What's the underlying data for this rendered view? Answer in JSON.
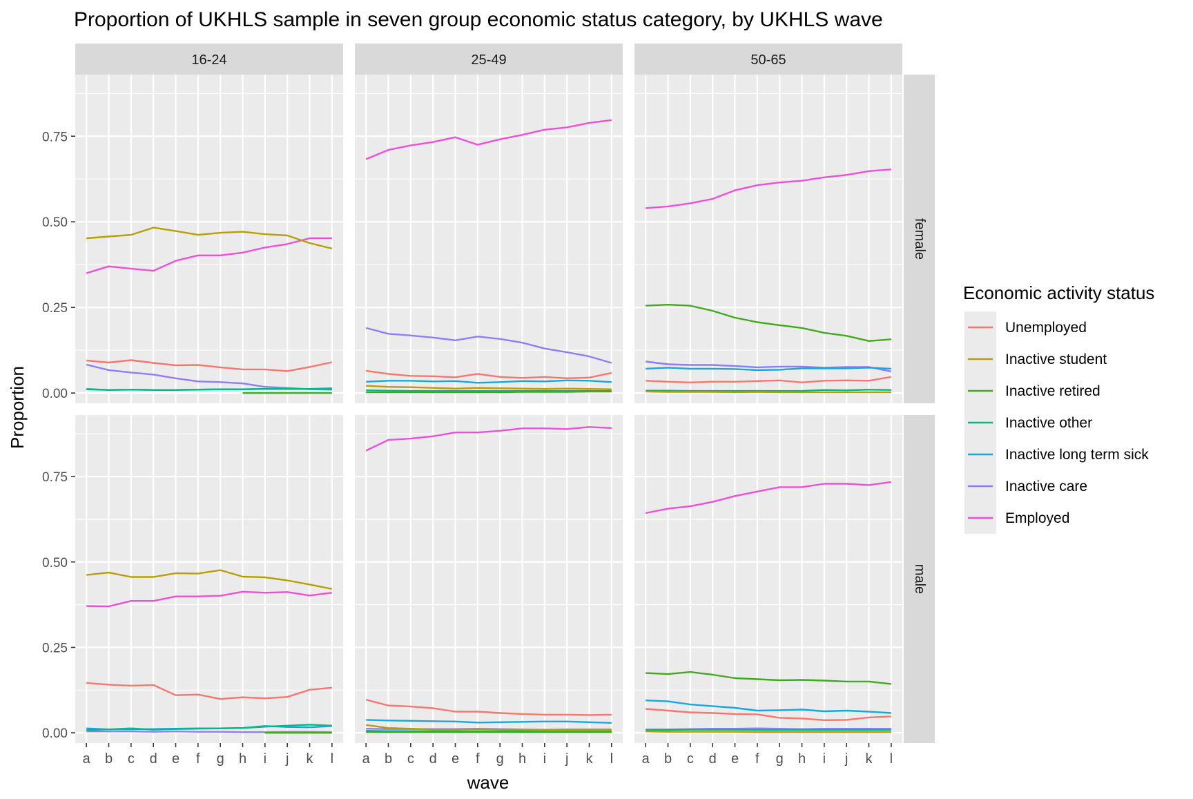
{
  "chart_data": {
    "type": "line",
    "title": "Proportion of UKHLS sample in seven group economic status category, by UKHLS wave",
    "xlabel": "wave",
    "ylabel": "Proportion",
    "x": [
      "a",
      "b",
      "c",
      "d",
      "e",
      "f",
      "g",
      "h",
      "i",
      "j",
      "k",
      "l"
    ],
    "yticks": [
      0.0,
      0.25,
      0.5,
      0.75
    ],
    "ytick_labels": [
      "0.00",
      "0.25",
      "0.50",
      "0.75"
    ],
    "ylim": [
      -0.03,
      0.93
    ],
    "grid": true,
    "col_facets": [
      "16-24",
      "25-49",
      "50-65"
    ],
    "row_facets": [
      "female",
      "male"
    ],
    "legend": {
      "title": "Economic activity status",
      "position": "right",
      "entries": [
        {
          "name": "Unemployed",
          "color": "#F8766D"
        },
        {
          "name": "Inactive student",
          "color": "#B79F00"
        },
        {
          "name": "Inactive retired",
          "color": "#3EAB1A"
        },
        {
          "name": "Inactive other",
          "color": "#00BA83"
        },
        {
          "name": "Inactive long term sick",
          "color": "#14A8E0"
        },
        {
          "name": "Inactive care",
          "color": "#8F7DF8"
        },
        {
          "name": "Employed",
          "color": "#EE4FD8"
        }
      ]
    },
    "panels": {
      "female": {
        "16-24": {
          "Unemployed": [
            0.095,
            0.089,
            0.096,
            0.088,
            0.081,
            0.082,
            0.075,
            0.069,
            0.069,
            0.064,
            0.076,
            0.09
          ],
          "Inactive student": [
            0.452,
            0.457,
            0.462,
            0.483,
            0.473,
            0.462,
            0.468,
            0.471,
            0.464,
            0.46,
            0.438,
            0.422
          ],
          "Inactive retired": [
            null,
            null,
            null,
            null,
            null,
            null,
            null,
            0.0,
            0.0,
            0.0,
            0.0,
            0.0
          ],
          "Inactive other": [
            0.011,
            0.009,
            0.01,
            0.009,
            0.009,
            0.01,
            0.011,
            0.011,
            0.012,
            0.012,
            0.012,
            0.011
          ],
          "Inactive long term sick": [
            0.012,
            0.009,
            0.01,
            0.009,
            0.009,
            0.01,
            0.011,
            0.011,
            0.012,
            0.012,
            0.012,
            0.014
          ],
          "Inactive care": [
            0.083,
            0.067,
            0.06,
            0.054,
            0.043,
            0.034,
            0.032,
            0.028,
            0.018,
            0.015,
            0.011,
            0.01
          ],
          "Employed": [
            0.35,
            0.37,
            0.363,
            0.357,
            0.386,
            0.402,
            0.402,
            0.41,
            0.425,
            0.435,
            0.452,
            0.452
          ]
        },
        "25-49": {
          "Unemployed": [
            0.065,
            0.056,
            0.05,
            0.049,
            0.046,
            0.056,
            0.047,
            0.044,
            0.047,
            0.043,
            0.045,
            0.059
          ],
          "Inactive student": [
            0.021,
            0.018,
            0.017,
            0.015,
            0.013,
            0.015,
            0.014,
            0.013,
            0.012,
            0.013,
            0.012,
            0.011
          ],
          "Inactive retired": [
            0.002,
            0.002,
            0.002,
            0.002,
            0.002,
            0.002,
            0.002,
            0.003,
            0.003,
            0.003,
            0.004,
            0.004
          ],
          "Inactive other": [
            0.008,
            0.007,
            0.006,
            0.006,
            0.006,
            0.006,
            0.006,
            0.006,
            0.006,
            0.006,
            0.006,
            0.006
          ],
          "Inactive long term sick": [
            0.033,
            0.036,
            0.036,
            0.034,
            0.035,
            0.03,
            0.032,
            0.035,
            0.034,
            0.037,
            0.036,
            0.032
          ],
          "Inactive care": [
            0.19,
            0.173,
            0.168,
            0.162,
            0.154,
            0.165,
            0.158,
            0.147,
            0.13,
            0.119,
            0.107,
            0.088
          ],
          "Employed": [
            0.683,
            0.71,
            0.723,
            0.733,
            0.747,
            0.725,
            0.741,
            0.754,
            0.769,
            0.776,
            0.789,
            0.797
          ]
        },
        "50-65": {
          "Unemployed": [
            0.036,
            0.033,
            0.031,
            0.033,
            0.033,
            0.035,
            0.037,
            0.031,
            0.036,
            0.037,
            0.036,
            0.047
          ],
          "Inactive student": [
            0.004,
            0.003,
            0.003,
            0.003,
            0.002,
            0.003,
            0.002,
            0.002,
            0.002,
            0.002,
            0.002,
            0.002
          ],
          "Inactive retired": [
            0.255,
            0.258,
            0.255,
            0.24,
            0.22,
            0.207,
            0.198,
            0.19,
            0.176,
            0.167,
            0.152,
            0.157
          ],
          "Inactive other": [
            0.007,
            0.007,
            0.006,
            0.006,
            0.006,
            0.006,
            0.006,
            0.006,
            0.009,
            0.008,
            0.01,
            0.009
          ],
          "Inactive long term sick": [
            0.071,
            0.074,
            0.071,
            0.071,
            0.07,
            0.067,
            0.068,
            0.072,
            0.072,
            0.072,
            0.074,
            0.071
          ],
          "Inactive care": [
            0.092,
            0.084,
            0.082,
            0.082,
            0.079,
            0.075,
            0.077,
            0.077,
            0.074,
            0.076,
            0.076,
            0.063
          ],
          "Employed": [
            0.54,
            0.545,
            0.554,
            0.567,
            0.592,
            0.607,
            0.615,
            0.62,
            0.63,
            0.637,
            0.648,
            0.653
          ]
        }
      },
      "male": {
        "16-24": {
          "Unemployed": [
            0.146,
            0.141,
            0.138,
            0.14,
            0.11,
            0.112,
            0.099,
            0.104,
            0.101,
            0.105,
            0.126,
            0.132
          ],
          "Inactive student": [
            0.462,
            0.469,
            0.456,
            0.456,
            0.467,
            0.466,
            0.476,
            0.457,
            0.455,
            0.446,
            0.434,
            0.421
          ],
          "Inactive retired": [
            null,
            null,
            null,
            null,
            null,
            null,
            null,
            null,
            0.0,
            0.0,
            0.0,
            0.0
          ],
          "Inactive other": [
            0.008,
            0.01,
            0.013,
            0.009,
            0.011,
            0.012,
            0.013,
            0.014,
            0.018,
            0.021,
            0.024,
            0.021
          ],
          "Inactive long term sick": [
            0.013,
            0.01,
            0.01,
            0.011,
            0.012,
            0.013,
            0.013,
            0.014,
            0.02,
            0.017,
            0.016,
            0.02
          ],
          "Inactive care": [
            0.004,
            0.004,
            0.004,
            0.003,
            0.004,
            0.003,
            0.003,
            0.002,
            0.002,
            0.003,
            0.003,
            0.002
          ],
          "Employed": [
            0.371,
            0.37,
            0.386,
            0.386,
            0.399,
            0.399,
            0.401,
            0.413,
            0.41,
            0.412,
            0.402,
            0.41
          ]
        },
        "25-49": {
          "Unemployed": [
            0.097,
            0.08,
            0.077,
            0.072,
            0.062,
            0.062,
            0.058,
            0.055,
            0.053,
            0.053,
            0.052,
            0.053
          ],
          "Inactive student": [
            0.023,
            0.014,
            0.012,
            0.01,
            0.01,
            0.011,
            0.01,
            0.009,
            0.008,
            0.008,
            0.008,
            0.008
          ],
          "Inactive retired": [
            0.002,
            0.002,
            0.002,
            0.002,
            0.002,
            0.002,
            0.002,
            0.002,
            0.002,
            0.002,
            0.002,
            0.002
          ],
          "Inactive other": [
            0.006,
            0.005,
            0.005,
            0.005,
            0.005,
            0.005,
            0.005,
            0.005,
            0.004,
            0.004,
            0.004,
            0.004
          ],
          "Inactive long term sick": [
            0.038,
            0.036,
            0.035,
            0.034,
            0.033,
            0.03,
            0.031,
            0.032,
            0.033,
            0.033,
            0.031,
            0.029
          ],
          "Inactive care": [
            0.012,
            0.011,
            0.011,
            0.011,
            0.011,
            0.012,
            0.011,
            0.01,
            0.009,
            0.01,
            0.01,
            0.01
          ],
          "Employed": [
            0.826,
            0.857,
            0.861,
            0.868,
            0.879,
            0.879,
            0.884,
            0.891,
            0.891,
            0.889,
            0.895,
            0.892
          ]
        },
        "50-65": {
          "Unemployed": [
            0.07,
            0.065,
            0.06,
            0.058,
            0.055,
            0.054,
            0.044,
            0.042,
            0.037,
            0.038,
            0.045,
            0.048
          ],
          "Inactive student": [
            0.004,
            0.003,
            0.003,
            0.003,
            0.003,
            0.002,
            0.002,
            0.002,
            0.002,
            0.002,
            0.002,
            0.002
          ],
          "Inactive retired": [
            0.175,
            0.172,
            0.178,
            0.17,
            0.16,
            0.157,
            0.154,
            0.155,
            0.153,
            0.15,
            0.15,
            0.143
          ],
          "Inactive other": [
            0.008,
            0.008,
            0.009,
            0.009,
            0.009,
            0.008,
            0.008,
            0.008,
            0.008,
            0.008,
            0.008,
            0.008
          ],
          "Inactive long term sick": [
            0.095,
            0.092,
            0.083,
            0.078,
            0.073,
            0.065,
            0.066,
            0.068,
            0.063,
            0.065,
            0.062,
            0.058
          ],
          "Inactive care": [
            0.01,
            0.01,
            0.011,
            0.012,
            0.012,
            0.013,
            0.012,
            0.011,
            0.012,
            0.012,
            0.012,
            0.012
          ],
          "Employed": [
            0.643,
            0.656,
            0.663,
            0.676,
            0.693,
            0.706,
            0.719,
            0.719,
            0.729,
            0.729,
            0.725,
            0.734
          ]
        }
      }
    }
  }
}
